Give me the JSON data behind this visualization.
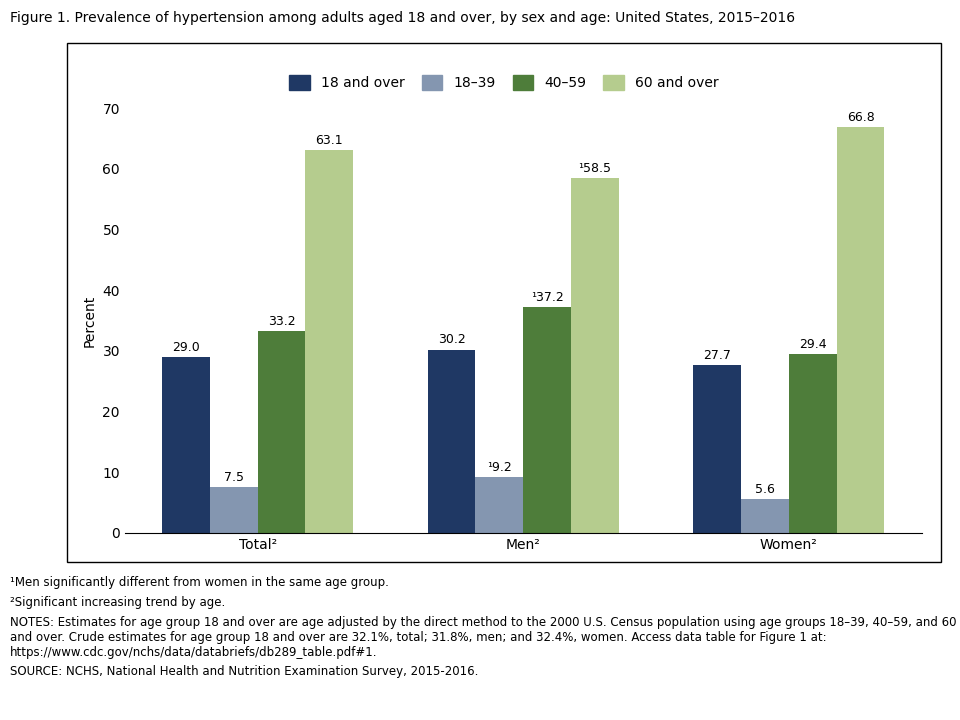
{
  "title": "Figure 1. Prevalence of hypertension among adults aged 18 and over, by sex and age: United States, 2015–2016",
  "categories": [
    "Total²",
    "Men²",
    "Women²"
  ],
  "series": [
    {
      "label": "18 and over",
      "color": "#1f3864",
      "values": [
        29.0,
        30.2,
        27.7
      ]
    },
    {
      "label": "18–39",
      "color": "#8496b0",
      "values": [
        7.5,
        9.2,
        5.6
      ]
    },
    {
      "label": "40–59",
      "color": "#4e7d3a",
      "values": [
        33.2,
        37.2,
        29.4
      ]
    },
    {
      "label": "60 and over",
      "color": "#b5cc8e",
      "values": [
        63.1,
        58.5,
        66.8
      ]
    }
  ],
  "bar_labels": [
    [
      "29.0",
      "7.5",
      "33.2",
      "63.1"
    ],
    [
      "30.2",
      "¹9.2",
      "¹37.2",
      "¹58.5"
    ],
    [
      "27.7",
      "5.6",
      "29.4",
      "66.8"
    ]
  ],
  "ylabel": "Percent",
  "ylim": [
    0,
    70
  ],
  "yticks": [
    0,
    10,
    20,
    30,
    40,
    50,
    60,
    70
  ],
  "footnote1": "¹Men significantly different from women in the same age group.",
  "footnote2": "²Significant increasing trend by age.",
  "notes": "NOTES: Estimates for age group 18 and over are age adjusted by the direct method to the 2000 U.S. Census population using age groups 18–39, 40–59, and 60\nand over. Crude estimates for age group 18 and over are 32.1%, total; 31.8%, men; and 32.4%, women. Access data table for Figure 1 at:\nhttps://www.cdc.gov/nchs/data/databriefs/db289_table.pdf#1.",
  "source": "SOURCE: NCHS, National Health and Nutrition Examination Survey, 2015-2016.",
  "title_fontsize": 10,
  "axis_fontsize": 10,
  "legend_fontsize": 10,
  "bar_label_fontsize": 9,
  "footnote_fontsize": 8.5
}
